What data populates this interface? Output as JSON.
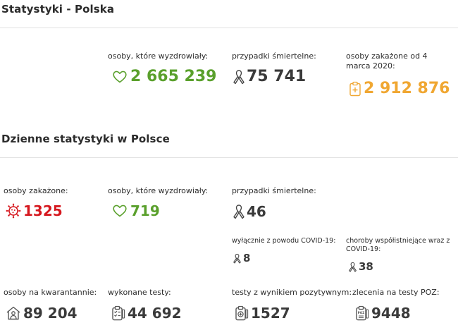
{
  "colors": {
    "green": "#5aa02c",
    "red": "#d6181f",
    "orange": "#f0a732",
    "dark": "#3a3a3a"
  },
  "overall": {
    "title": "Statystyki - Polska",
    "recovered": {
      "label": "osoby, które wyzdrowiały:",
      "value": "2 665 239",
      "icon": "heart-icon"
    },
    "deaths": {
      "label": "przypadki śmiertelne:",
      "value": "75 741",
      "icon": "ribbon-icon"
    },
    "infected": {
      "label": "osoby zakażone od 4 marca 2020:",
      "value": "2 912 876",
      "icon": "clipboard-medical-icon"
    }
  },
  "daily": {
    "title": "Dzienne statystyki w Polsce",
    "infected": {
      "label": "osoby zakażone:",
      "value": "1325",
      "icon": "virus-icon"
    },
    "recovered": {
      "label": "osoby, które wyzdrowiały:",
      "value": "719",
      "icon": "heart-icon"
    },
    "deaths": {
      "label": "przypadki śmiertelne:",
      "value": "46",
      "icon": "ribbon-icon"
    },
    "covid_only": {
      "label": "wyłącznie z powodu COVID-19:",
      "value": "8",
      "icon": "ribbon-icon"
    },
    "comorbid": {
      "label": "choroby współistniejące wraz z COVID-19:",
      "value": "38",
      "icon": "ribbon-icon"
    },
    "quarantine": {
      "label": "osoby na kwarantannie:",
      "value": "89 204",
      "icon": "house-person-icon"
    },
    "tests": {
      "label": "wykonane testy:",
      "value": "44 692",
      "icon": "clipboard-check-icon"
    },
    "positive_tests": {
      "label": "testy z wynikiem pozytywnym:",
      "value": "1527",
      "icon": "clipboard-plus-icon"
    },
    "poz_orders": {
      "label": "zlecenia na testy POZ:",
      "value": "9448",
      "icon": "clipboard-poz-icon",
      "icon_text": "POZ"
    }
  }
}
